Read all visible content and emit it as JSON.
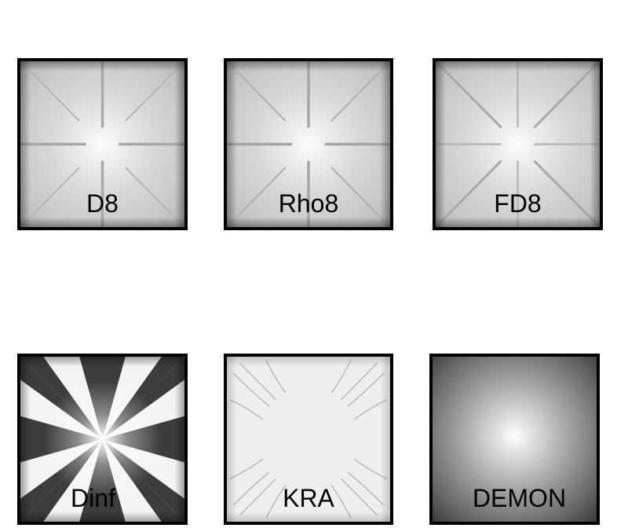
{
  "panels": [
    {
      "id": "d8",
      "label": "D8"
    },
    {
      "id": "rho8",
      "label": "Rho8"
    },
    {
      "id": "fd8",
      "label": "FD8"
    },
    {
      "id": "dinf",
      "label": "Dinf"
    },
    {
      "id": "kra",
      "label": "KRA"
    },
    {
      "id": "demon",
      "label": "DEMON"
    }
  ]
}
